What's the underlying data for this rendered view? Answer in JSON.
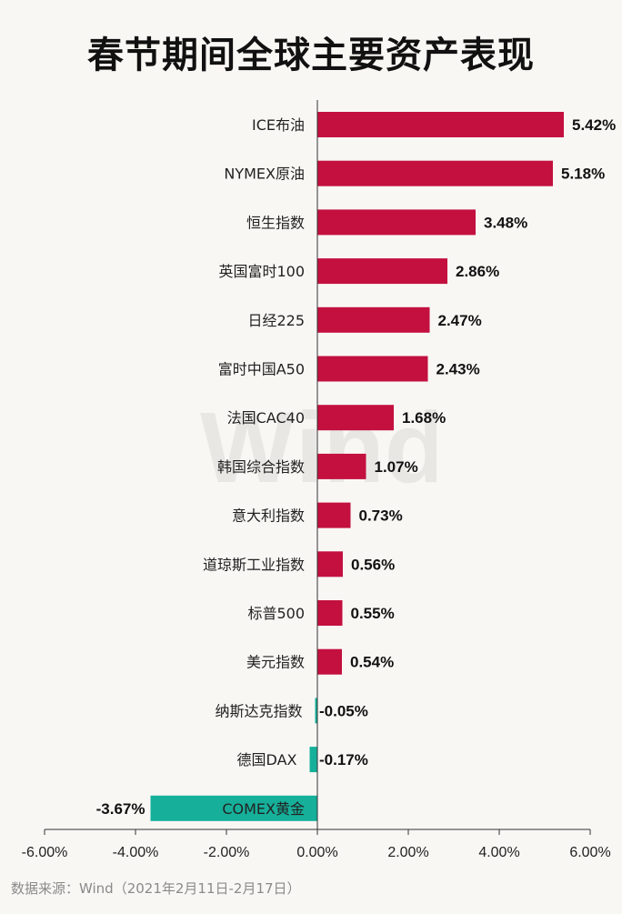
{
  "title": "春节期间全球主要资产表现",
  "source": "数据来源：Wind（2021年2月11日-2月17日）",
  "watermark": "Wind",
  "colors": {
    "positive": "#c3103f",
    "negative": "#16b09a",
    "axis": "#333333",
    "text": "#222222"
  },
  "chart_data": {
    "type": "bar",
    "orientation": "horizontal",
    "categories": [
      "ICE布油",
      "NYMEX原油",
      "恒生指数",
      "英国富时100",
      "日经225",
      "富时中国A50",
      "法国CAC40",
      "韩国综合指数",
      "意大利指数",
      "道琼斯工业指数",
      "标普500",
      "美元指数",
      "纳斯达克指数",
      "德国DAX",
      "COMEX黄金"
    ],
    "values": [
      5.42,
      5.18,
      3.48,
      2.86,
      2.47,
      2.43,
      1.68,
      1.07,
      0.73,
      0.56,
      0.55,
      0.54,
      -0.05,
      -0.17,
      -3.67
    ],
    "data_labels": [
      "5.42%",
      "5.18%",
      "3.48%",
      "2.86%",
      "2.47%",
      "2.43%",
      "1.68%",
      "1.07%",
      "0.73%",
      "0.56%",
      "0.55%",
      "0.54%",
      "-0.05%",
      "-0.17%",
      "-3.67%"
    ],
    "xlim": [
      -6,
      6
    ],
    "x_ticks": [
      -6,
      -4,
      -2,
      0,
      2,
      4,
      6
    ],
    "x_tick_labels": [
      "-6.00%",
      "-4.00%",
      "-2.00%",
      "0.00%",
      "2.00%",
      "4.00%",
      "6.00%"
    ],
    "grid": false
  }
}
